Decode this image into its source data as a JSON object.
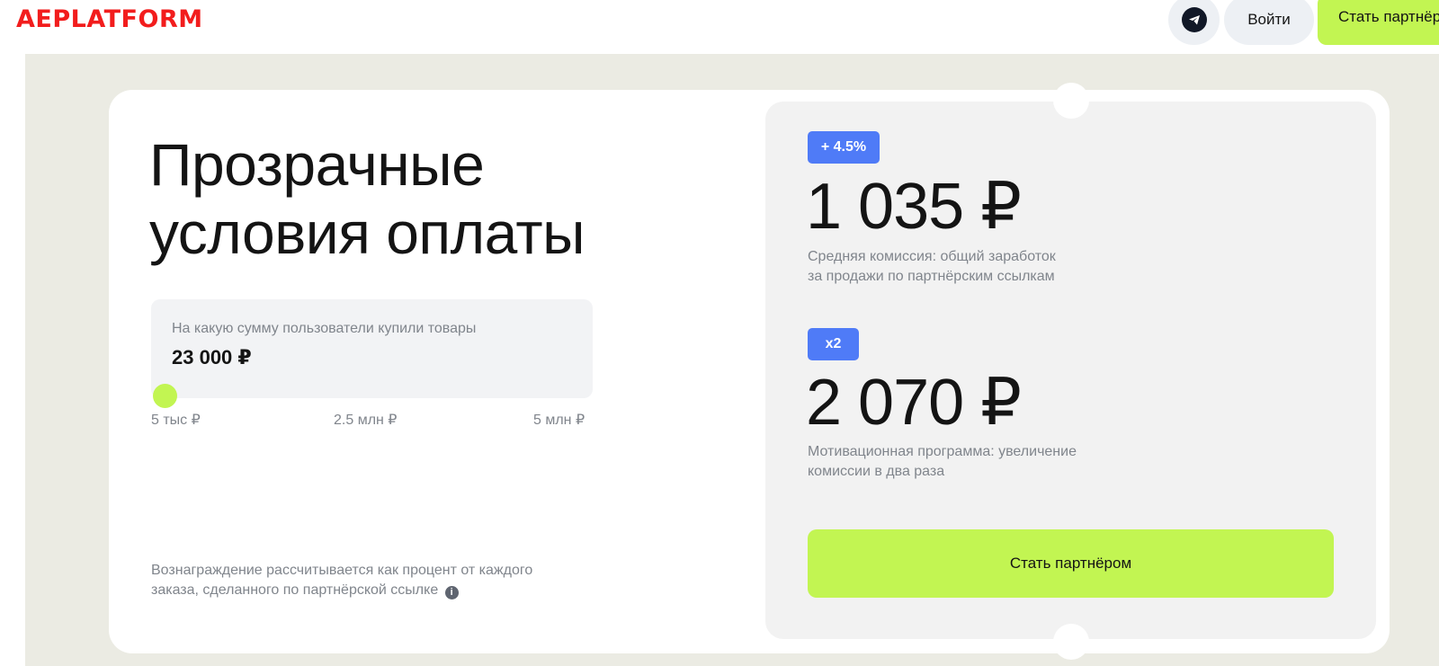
{
  "header": {
    "logo": "AEPLATFORM",
    "telegram_icon": "telegram-icon",
    "login": "Войти",
    "become_partner": "Стать партнёром"
  },
  "main": {
    "title_line1": "Прозрачные",
    "title_line2": "условия оплаты",
    "calculator": {
      "label": "На какую сумму пользователи купили товары",
      "value": "23 000 ₽",
      "slider_value": 23000,
      "slider_min": 5000,
      "slider_max": 5000000,
      "ticks": [
        "5 тыс ₽",
        "2.5 млн ₽",
        "5 млн ₽"
      ]
    },
    "note_line1": "Вознаграждение рассчитывается как процент от каждого",
    "note_line2": "заказа, сделанного по партнёрской ссылке",
    "info_icon": "i"
  },
  "panel": {
    "commission": {
      "badge": "+ 4.5%",
      "amount": "1 035 ₽",
      "desc_line1": "Средняя комиссия: общий заработок",
      "desc_line2": "за продажи по партнёрским ссылкам"
    },
    "motivation": {
      "badge": "x2",
      "amount": "2 070 ₽",
      "desc_line1": "Мотивационная программа: увеличение",
      "desc_line2": "комиссии в два раза"
    },
    "cta": "Стать партнёром"
  },
  "colors": {
    "accent": "#c2f552",
    "badge": "#4f7bf7",
    "logo": "#f21d1d",
    "background": "#ebebe3"
  }
}
